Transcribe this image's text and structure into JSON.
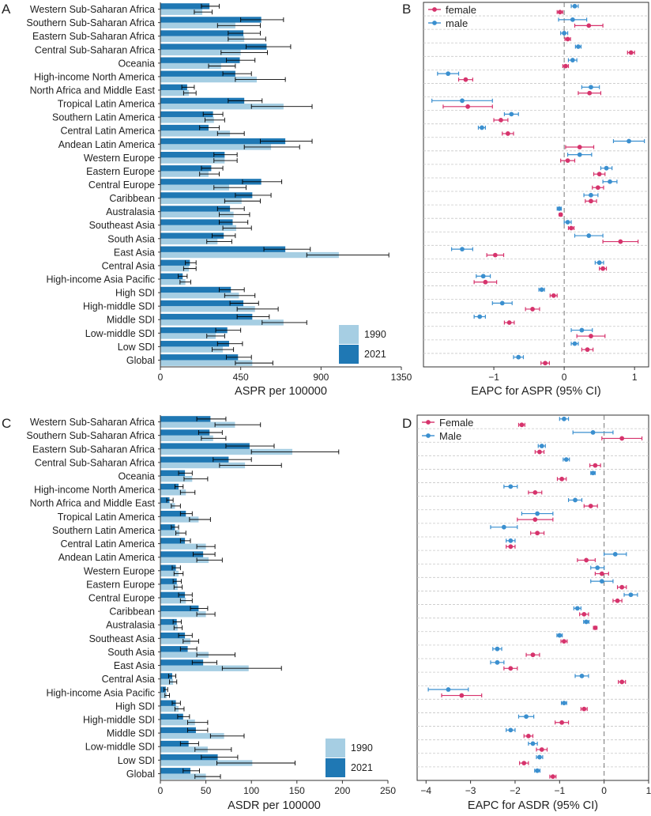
{
  "colors": {
    "bar_1990": "#a6cee3",
    "bar_2021": "#1f78b4",
    "female": "#d6336c",
    "male": "#3a8fcf",
    "axis": "#333333",
    "grid": "#c8c8c8",
    "zero_line": "#777777"
  },
  "chart_data": [
    {
      "panel_letter": "A",
      "type": "bar",
      "orientation": "horizontal",
      "xlabel": "ASPR per 100000",
      "xlim": [
        0,
        1350
      ],
      "xticks": [
        0,
        450,
        900,
        1350
      ],
      "legend": {
        "position": "bottom-right",
        "labels": [
          "1990",
          "2021"
        ]
      },
      "categories": [
        "Western Sub-Saharan Africa",
        "Southern Sub-Saharan Africa",
        "Eastern Sub-Saharan Africa",
        "Central Sub-Saharan Africa",
        "Oceania",
        "High-income North America",
        "North Africa and Middle East",
        "Tropical Latin America",
        "Southern Latin America",
        "Central Latin America",
        "Andean Latin America",
        "Western Europe",
        "Eastern Europe",
        "Central Europe",
        "Caribbean",
        "Australasia",
        "Southeast Asia",
        "South Asia",
        "East Asia",
        "Central Asia",
        "High-income Asia Pacific",
        "High SDI",
        "High-middle SDI",
        "Middle SDI",
        "Low-middle SDI",
        "Low SDI",
        "Global"
      ],
      "series": [
        {
          "name": "1990",
          "values": [
            235,
            420,
            470,
            450,
            340,
            540,
            160,
            690,
            300,
            390,
            620,
            360,
            270,
            385,
            455,
            410,
            425,
            320,
            1000,
            160,
            140,
            440,
            530,
            690,
            310,
            350,
            515
          ],
          "lower": [
            190,
            320,
            380,
            340,
            270,
            420,
            130,
            510,
            250,
            320,
            470,
            300,
            220,
            300,
            360,
            330,
            350,
            260,
            820,
            130,
            110,
            360,
            430,
            570,
            260,
            290,
            420
          ],
          "upper": [
            290,
            560,
            590,
            600,
            420,
            700,
            200,
            850,
            360,
            470,
            780,
            430,
            330,
            480,
            560,
            500,
            510,
            400,
            1280,
            200,
            170,
            530,
            660,
            820,
            360,
            410,
            630
          ]
        },
        {
          "name": "2021",
          "values": [
            275,
            565,
            465,
            595,
            445,
            420,
            150,
            470,
            295,
            270,
            700,
            360,
            285,
            565,
            515,
            390,
            405,
            355,
            700,
            165,
            125,
            395,
            465,
            515,
            375,
            385,
            435
          ],
          "lower": [
            230,
            450,
            380,
            480,
            370,
            350,
            120,
            380,
            240,
            220,
            560,
            300,
            230,
            460,
            420,
            320,
            330,
            290,
            580,
            140,
            100,
            330,
            390,
            430,
            310,
            320,
            370
          ],
          "upper": [
            330,
            690,
            560,
            730,
            530,
            510,
            190,
            570,
            350,
            330,
            850,
            430,
            350,
            680,
            620,
            470,
            490,
            420,
            840,
            200,
            150,
            470,
            550,
            610,
            450,
            460,
            510
          ]
        }
      ]
    },
    {
      "panel_letter": "B",
      "type": "scatter",
      "subtype": "forest-plot",
      "xlabel": "EAPC for ASPR (95% CI)",
      "xlim": [
        -2.0,
        1.2
      ],
      "xticks": [
        -1,
        0,
        1
      ],
      "reference_line": 0,
      "legend": {
        "position": "top-left",
        "labels": [
          "female",
          "male"
        ]
      },
      "categories": [
        "Western Sub-Saharan Africa",
        "Southern Sub-Saharan Africa",
        "Eastern Sub-Saharan Africa",
        "Central Sub-Saharan Africa",
        "Oceania",
        "High-income North America",
        "North Africa and Middle East",
        "Tropical Latin America",
        "Southern Latin America",
        "Central Latin America",
        "Andean Latin America",
        "Western Europe",
        "Eastern Europe",
        "Central Europe",
        "Caribbean",
        "Australasia",
        "Southeast Asia",
        "South Asia",
        "East Asia",
        "Central Asia",
        "High-income Asia Pacific",
        "High SDI",
        "High-middle SDI",
        "Middle SDI",
        "Low-middle SDI",
        "Low SDI",
        "Global"
      ],
      "series": [
        {
          "name": "male",
          "values": [
            0.15,
            0.12,
            0.0,
            0.2,
            0.12,
            -1.65,
            0.38,
            -1.45,
            -0.75,
            -1.17,
            0.92,
            0.22,
            0.6,
            0.65,
            0.38,
            -0.07,
            0.05,
            0.35,
            -1.45,
            0.5,
            -1.15,
            -0.32,
            -0.88,
            -1.2,
            0.25,
            0.15,
            -0.65
          ],
          "lower": [
            0.1,
            -0.08,
            -0.05,
            0.16,
            0.06,
            -1.8,
            0.25,
            -1.88,
            -0.85,
            -1.22,
            0.7,
            0.05,
            0.52,
            0.55,
            0.28,
            -0.1,
            0.0,
            0.15,
            -1.6,
            0.44,
            -1.25,
            -0.36,
            -1.02,
            -1.28,
            0.1,
            0.1,
            -0.72
          ],
          "upper": [
            0.2,
            0.32,
            0.05,
            0.24,
            0.18,
            -1.5,
            0.5,
            -1.02,
            -0.65,
            -1.12,
            1.14,
            0.39,
            0.68,
            0.75,
            0.48,
            -0.04,
            0.1,
            0.55,
            -1.3,
            0.56,
            -1.05,
            -0.28,
            -0.74,
            -1.12,
            0.4,
            0.2,
            -0.58
          ]
        },
        {
          "name": "female",
          "values": [
            -0.06,
            0.35,
            0.05,
            0.95,
            0.02,
            -1.4,
            0.36,
            -1.37,
            -0.9,
            -0.8,
            0.22,
            0.05,
            0.5,
            0.48,
            0.38,
            -0.05,
            0.1,
            0.8,
            -0.98,
            0.55,
            -1.12,
            -0.15,
            -0.45,
            -0.78,
            0.38,
            0.33,
            -0.27
          ],
          "lower": [
            -0.1,
            0.15,
            0.01,
            0.9,
            -0.02,
            -1.5,
            0.2,
            -1.72,
            -1.0,
            -0.88,
            0.02,
            -0.05,
            0.42,
            0.4,
            0.3,
            -0.07,
            0.06,
            0.55,
            -1.1,
            0.5,
            -1.28,
            -0.2,
            -0.55,
            -0.85,
            0.18,
            0.25,
            -0.33
          ],
          "upper": [
            -0.02,
            0.55,
            0.09,
            1.0,
            0.06,
            -1.3,
            0.52,
            -1.02,
            -0.8,
            -0.72,
            0.42,
            0.15,
            0.58,
            0.56,
            0.46,
            -0.03,
            0.14,
            1.05,
            -0.86,
            0.6,
            -0.96,
            -0.1,
            -0.35,
            -0.71,
            0.58,
            0.41,
            -0.21
          ]
        }
      ]
    },
    {
      "panel_letter": "C",
      "type": "bar",
      "orientation": "horizontal",
      "xlabel": "ASDR per 100000",
      "xlim": [
        0,
        250
      ],
      "xticks": [
        0,
        50,
        100,
        150,
        200,
        250
      ],
      "legend": {
        "position": "bottom-right",
        "labels": [
          "1990",
          "2021"
        ]
      },
      "categories": [
        "Western Sub-Saharan Africa",
        "Southern Sub-Saharan Africa",
        "Eastern Sub-Saharan Africa",
        "Central Sub-Saharan Africa",
        "Oceania",
        "High-income North America",
        "North Africa and Middle East",
        "Tropical Latin America",
        "Southern Latin America",
        "Central Latin America",
        "Andean Latin America",
        "Western Europe",
        "Eastern Europe",
        "Central Europe",
        "Caribbean",
        "Australasia",
        "Southeast Asia",
        "South Asia",
        "East Asia",
        "Central Asia",
        "High-income Asia Pacific",
        "High SDI",
        "High-middle SDI",
        "Middle SDI",
        "Low-middle SDI",
        "Low SDI",
        "Global"
      ],
      "series": [
        {
          "name": "1990",
          "values": [
            82,
            58,
            145,
            93,
            35,
            28,
            16,
            42,
            21,
            50,
            53,
            20,
            19,
            28,
            50,
            19,
            33,
            53,
            97,
            14,
            7,
            20,
            38,
            70,
            52,
            101,
            50
          ],
          "lower": [
            60,
            45,
            100,
            65,
            26,
            22,
            12,
            32,
            17,
            40,
            40,
            15,
            15,
            22,
            40,
            15,
            25,
            40,
            68,
            10,
            5,
            16,
            30,
            55,
            38,
            62,
            38
          ],
          "upper": [
            110,
            72,
            196,
            133,
            52,
            38,
            22,
            55,
            28,
            60,
            68,
            25,
            24,
            35,
            60,
            24,
            42,
            82,
            133,
            18,
            10,
            26,
            52,
            92,
            78,
            148,
            66
          ]
        },
        {
          "name": "2021",
          "values": [
            55,
            54,
            98,
            75,
            27,
            20,
            10,
            28,
            16,
            27,
            47,
            17,
            18,
            27,
            42,
            18,
            27,
            30,
            47,
            13,
            6,
            17,
            25,
            39,
            31,
            63,
            33
          ],
          "lower": [
            40,
            42,
            72,
            58,
            20,
            16,
            7,
            22,
            12,
            22,
            36,
            13,
            14,
            20,
            33,
            14,
            20,
            22,
            35,
            9,
            4,
            13,
            19,
            30,
            22,
            45,
            25
          ],
          "upper": [
            72,
            68,
            125,
            100,
            35,
            25,
            14,
            35,
            20,
            33,
            60,
            22,
            23,
            35,
            52,
            23,
            35,
            40,
            62,
            17,
            8,
            22,
            32,
            52,
            42,
            85,
            43
          ]
        }
      ]
    },
    {
      "panel_letter": "D",
      "type": "scatter",
      "subtype": "forest-plot",
      "xlabel": "EAPC for ASDR (95% CI)",
      "xlim": [
        -4.2,
        1.0
      ],
      "xticks": [
        -4,
        -3,
        -2,
        -1,
        0,
        1
      ],
      "reference_line": 0,
      "legend": {
        "position": "top-left",
        "labels": [
          "Female",
          "Male"
        ]
      },
      "categories": [
        "Western Sub-Saharan Africa",
        "Southern Sub-Saharan Africa",
        "Eastern Sub-Saharan Africa",
        "Central Sub-Saharan Africa",
        "Oceania",
        "High-income North America",
        "North Africa and Middle East",
        "Tropical Latin America",
        "Southern Latin America",
        "Central Latin America",
        "Andean Latin America",
        "Western Europe",
        "Eastern Europe",
        "Central Europe",
        "Caribbean",
        "Australasia",
        "Southeast Asia",
        "South Asia",
        "East Asia",
        "Central Asia",
        "High-income Asia Pacific",
        "High SDI",
        "High-middle SDI",
        "Middle SDI",
        "Low-middle SDI",
        "Low SDI",
        "Global"
      ],
      "series": [
        {
          "name": "Male",
          "values": [
            -0.9,
            -0.25,
            -1.4,
            -0.85,
            -0.25,
            -2.1,
            -0.65,
            -1.5,
            -2.25,
            -2.1,
            0.25,
            -0.15,
            -0.05,
            0.6,
            -0.6,
            -0.4,
            -1.0,
            -2.4,
            -2.4,
            -0.5,
            -3.5,
            -0.9,
            -1.75,
            -2.1,
            -1.6,
            -1.45,
            -1.5
          ],
          "lower": [
            -1.0,
            -0.7,
            -1.48,
            -0.92,
            -0.3,
            -2.25,
            -0.8,
            -1.85,
            -2.55,
            -2.2,
            0.0,
            -0.3,
            -0.3,
            0.45,
            -0.68,
            -0.46,
            -1.06,
            -2.5,
            -2.55,
            -0.65,
            -3.95,
            -0.96,
            -1.92,
            -2.2,
            -1.7,
            -1.52,
            -1.56
          ],
          "upper": [
            -0.8,
            0.2,
            -1.32,
            -0.78,
            -0.2,
            -1.95,
            -0.5,
            -1.15,
            -1.95,
            -2.0,
            0.5,
            0.0,
            0.2,
            0.75,
            -0.52,
            -0.34,
            -0.94,
            -2.3,
            -2.25,
            -0.35,
            -3.05,
            -0.84,
            -1.58,
            -2.0,
            -1.5,
            -1.38,
            -1.44
          ]
        },
        {
          "name": "Female",
          "values": [
            -1.85,
            0.4,
            -1.45,
            -0.2,
            -0.95,
            -1.55,
            -0.3,
            -1.55,
            -1.5,
            -2.1,
            -0.4,
            -0.05,
            0.4,
            0.3,
            -0.45,
            -0.2,
            -0.9,
            -1.6,
            -2.1,
            0.4,
            -3.2,
            -0.45,
            -0.95,
            -1.7,
            -1.4,
            -1.8,
            -1.15
          ],
          "lower": [
            -1.92,
            -0.05,
            -1.55,
            -0.32,
            -1.05,
            -1.7,
            -0.45,
            -1.95,
            -1.65,
            -2.2,
            -0.6,
            -0.2,
            0.3,
            0.2,
            -0.55,
            -0.24,
            -0.97,
            -1.75,
            -2.25,
            0.32,
            -3.65,
            -0.52,
            -1.1,
            -1.8,
            -1.52,
            -1.9,
            -1.22
          ],
          "upper": [
            -1.78,
            0.85,
            -1.35,
            -0.08,
            -0.85,
            -1.4,
            -0.15,
            -1.15,
            -1.35,
            -2.0,
            -0.2,
            0.1,
            0.5,
            0.4,
            -0.35,
            -0.16,
            -0.83,
            -1.45,
            -1.95,
            0.48,
            -2.75,
            -0.38,
            -0.8,
            -1.6,
            -1.28,
            -1.7,
            -1.08
          ]
        }
      ]
    }
  ]
}
